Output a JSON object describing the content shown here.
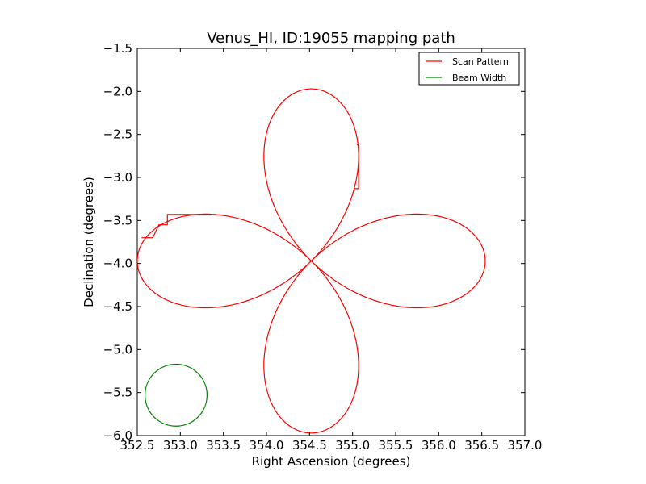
{
  "chart_data": {
    "type": "line",
    "title": "Venus_HI, ID:19055 mapping path",
    "xlabel": "Right Ascension (degrees)",
    "ylabel": "Declination (degrees)",
    "xlim": [
      352.5,
      357.0
    ],
    "ylim": [
      -6.0,
      -1.5
    ],
    "x_ticks": [
      "352.5",
      "353.0",
      "353.5",
      "354.0",
      "354.5",
      "355.0",
      "355.5",
      "356.0",
      "356.5",
      "357.0"
    ],
    "y_ticks": [
      "−1.5",
      "−2.0",
      "−2.5",
      "−3.0",
      "−3.5",
      "−4.0",
      "−4.5",
      "−5.0",
      "−5.5",
      "−6.0"
    ],
    "grid": false,
    "legend_position": "top-right",
    "series": [
      {
        "name": "Scan Pattern",
        "color": "#ff0000",
        "shape": "four-petal rose",
        "center": [
          354.52,
          -3.97
        ],
        "petal_tips": [
          [
            354.52,
            -1.97
          ],
          [
            356.54,
            -3.97
          ],
          [
            354.52,
            -5.97
          ],
          [
            352.5,
            -3.97
          ]
        ],
        "x": [
          354.52,
          354.28,
          354.0,
          353.7,
          353.42,
          353.35,
          353.35,
          353.32,
          353.05,
          352.85,
          352.8,
          352.68,
          352.66,
          352.53,
          352.52,
          352.62,
          352.8,
          353.05,
          353.42,
          353.8,
          354.1,
          354.35,
          354.52,
          354.8,
          355.03,
          355.1,
          355.1,
          355.08,
          355.03,
          354.95,
          354.8,
          354.52,
          354.25,
          354.03,
          353.95,
          353.94,
          354.0,
          354.2,
          354.4,
          354.52,
          354.78,
          355.1,
          355.45,
          355.75,
          356.05,
          356.4,
          356.52,
          356.52,
          356.4,
          356.05,
          355.75,
          355.45,
          355.1,
          354.78,
          354.52,
          354.4,
          354.2,
          354.0,
          353.94,
          353.95,
          354.03,
          354.25,
          354.52,
          354.75,
          354.95,
          355.05,
          355.05,
          355.1,
          355.1,
          355.0,
          354.8,
          354.52
        ],
        "y": [
          -3.97,
          -3.75,
          -3.58,
          -3.47,
          -3.43,
          -3.43,
          -3.44,
          -3.44,
          -3.46,
          -3.55,
          -3.55,
          -3.67,
          -3.7,
          -3.7,
          -3.97,
          -4.25,
          -4.4,
          -4.48,
          -4.51,
          -4.47,
          -4.38,
          -4.2,
          -3.97,
          -3.73,
          -3.58,
          -3.5,
          -3.45,
          -3.44,
          -3.43,
          -3.43,
          -3.47,
          -3.97,
          -3.55,
          -3.1,
          -2.85,
          -2.63,
          -2.4,
          -2.1,
          -1.98,
          -1.97,
          -2.0,
          -2.25,
          -2.6,
          -3.1,
          -3.45,
          -3.97,
          -3.97,
          -3.97,
          -4.5,
          -4.55,
          -4.3,
          -4.05,
          -3.97,
          -4.2,
          -4.45,
          -4.55,
          -4.85,
          -5.1,
          -5.3,
          -5.55,
          -5.85,
          -5.96,
          -5.97,
          -5.9,
          -5.6,
          -5.2,
          -4.9,
          -4.6,
          -4.25,
          -3.97,
          -3.97,
          -3.97
        ]
      },
      {
        "name": "Beam Width",
        "color": "#008000",
        "shape": "circle",
        "center": [
          352.95,
          -5.53
        ],
        "radius": 0.36
      }
    ]
  }
}
